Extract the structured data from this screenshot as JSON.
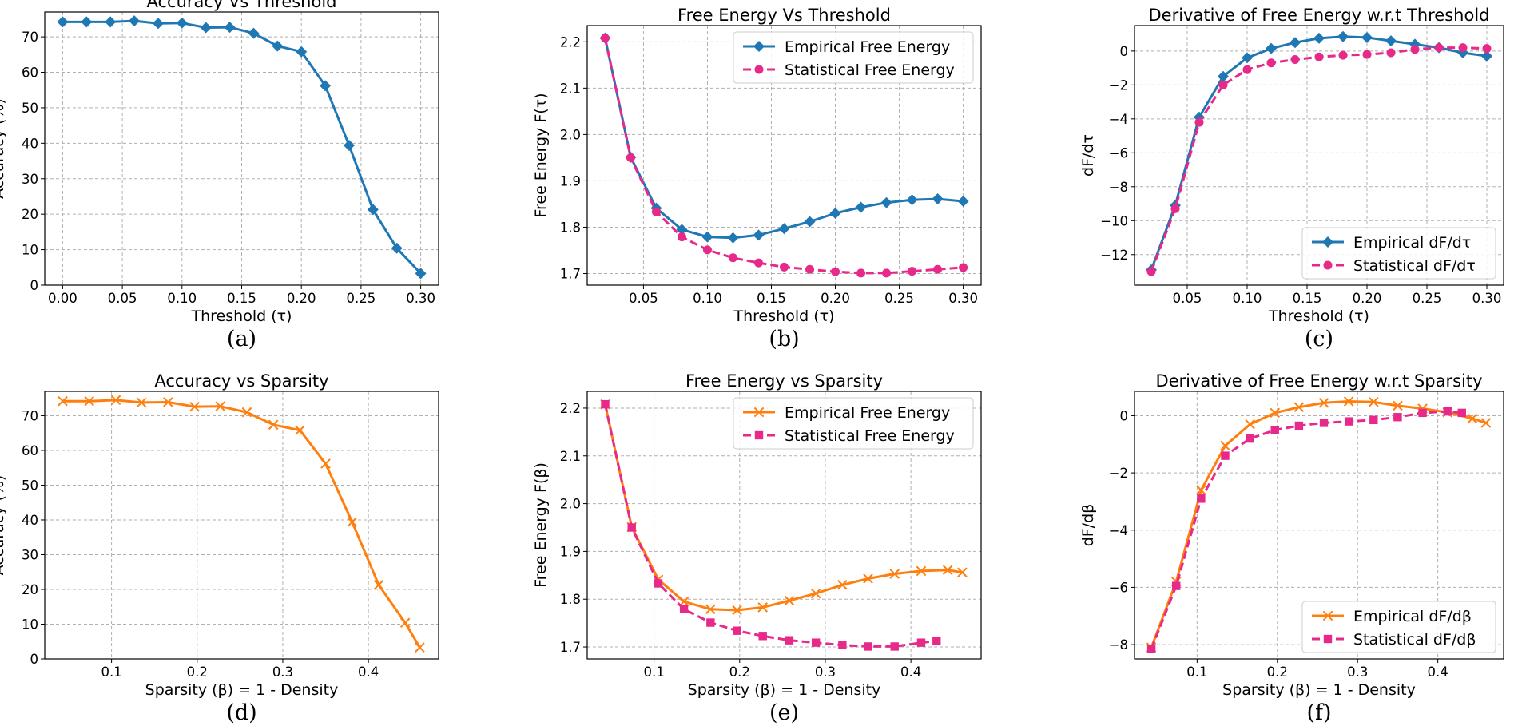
{
  "chart_data": [
    {
      "id": "a",
      "type": "line",
      "title": "Accuracy Vs Threshold",
      "xlabel": "Threshold (τ)",
      "ylabel": "Accuracy (%)",
      "caption": "(a)",
      "xlim": [
        -0.015,
        0.315
      ],
      "ylim": [
        0,
        77
      ],
      "xticks": [
        0.0,
        0.05,
        0.1,
        0.15,
        0.2,
        0.25,
        0.3
      ],
      "xtick_labels": [
        "0.00",
        "0.05",
        "0.10",
        "0.15",
        "0.20",
        "0.25",
        "0.30"
      ],
      "yticks": [
        0,
        10,
        20,
        30,
        40,
        50,
        60,
        70
      ],
      "ytick_labels": [
        "0",
        "10",
        "20",
        "30",
        "40",
        "50",
        "60",
        "70"
      ],
      "legend": null,
      "series": [
        {
          "name": "Accuracy",
          "color": "#1f77b4",
          "marker": "diamond",
          "dashed": false,
          "x": [
            0.0,
            0.02,
            0.04,
            0.06,
            0.08,
            0.1,
            0.12,
            0.14,
            0.16,
            0.18,
            0.2,
            0.22,
            0.24,
            0.26,
            0.28,
            0.3
          ],
          "y": [
            74.2,
            74.2,
            74.2,
            74.5,
            73.8,
            73.9,
            72.6,
            72.7,
            71.0,
            67.4,
            65.8,
            56.2,
            39.4,
            21.3,
            10.4,
            3.3
          ]
        }
      ]
    },
    {
      "id": "b",
      "type": "line",
      "title": "Free Energy Vs Threshold",
      "xlabel": "Threshold (τ)",
      "ylabel": "Free Energy F(τ)",
      "caption": "(b)",
      "xlim": [
        0.006,
        0.314
      ],
      "ylim": [
        1.675,
        2.235
      ],
      "xticks": [
        0.05,
        0.1,
        0.15,
        0.2,
        0.25,
        0.3
      ],
      "xtick_labels": [
        "0.05",
        "0.10",
        "0.15",
        "0.20",
        "0.25",
        "0.30"
      ],
      "yticks": [
        1.7,
        1.8,
        1.9,
        2.0,
        2.1,
        2.2
      ],
      "ytick_labels": [
        "1.7",
        "1.8",
        "1.9",
        "2.0",
        "2.1",
        "2.2"
      ],
      "legend": "top-right",
      "series": [
        {
          "name": "Empirical Free Energy",
          "color": "#1f77b4",
          "marker": "diamond",
          "dashed": false,
          "x": [
            0.02,
            0.04,
            0.06,
            0.08,
            0.1,
            0.12,
            0.14,
            0.16,
            0.18,
            0.2,
            0.22,
            0.24,
            0.26,
            0.28,
            0.3
          ],
          "y": [
            2.208,
            1.951,
            1.841,
            1.795,
            1.779,
            1.777,
            1.783,
            1.797,
            1.812,
            1.83,
            1.843,
            1.853,
            1.859,
            1.861,
            1.856
          ]
        },
        {
          "name": "Statistical Free Energy",
          "color": "#e7298a",
          "marker": "circle",
          "dashed": true,
          "x": [
            0.02,
            0.04,
            0.06,
            0.08,
            0.1,
            0.12,
            0.14,
            0.16,
            0.18,
            0.2,
            0.22,
            0.24,
            0.26,
            0.28,
            0.3
          ],
          "y": [
            2.208,
            1.95,
            1.833,
            1.779,
            1.751,
            1.734,
            1.723,
            1.714,
            1.709,
            1.704,
            1.701,
            1.701,
            1.705,
            1.709,
            1.713
          ]
        }
      ]
    },
    {
      "id": "c",
      "type": "line",
      "title": "Derivative of Free Energy w.r.t Threshold",
      "xlabel": "Threshold (τ)",
      "ylabel": "dF/dτ",
      "caption": "(c)",
      "xlim": [
        0.006,
        0.314
      ],
      "ylim": [
        -13.8,
        1.5
      ],
      "xticks": [
        0.05,
        0.1,
        0.15,
        0.2,
        0.25,
        0.3
      ],
      "xtick_labels": [
        "0.05",
        "0.10",
        "0.15",
        "0.20",
        "0.25",
        "0.30"
      ],
      "yticks": [
        -12,
        -10,
        -8,
        -6,
        -4,
        -2,
        0
      ],
      "ytick_labels": [
        "−12",
        "−10",
        "−8",
        "−6",
        "−4",
        "−2",
        "0"
      ],
      "legend": "bottom-right",
      "series": [
        {
          "name": "Empirical dF/dτ",
          "color": "#1f77b4",
          "marker": "diamond",
          "dashed": false,
          "x": [
            0.02,
            0.04,
            0.06,
            0.08,
            0.1,
            0.12,
            0.14,
            0.16,
            0.18,
            0.2,
            0.22,
            0.24,
            0.26,
            0.28,
            0.3
          ],
          "y": [
            -12.9,
            -9.1,
            -3.9,
            -1.5,
            -0.4,
            0.15,
            0.5,
            0.75,
            0.85,
            0.8,
            0.6,
            0.4,
            0.2,
            -0.1,
            -0.3
          ]
        },
        {
          "name": "Statistical dF/dτ",
          "color": "#e7298a",
          "marker": "circle",
          "dashed": true,
          "x": [
            0.02,
            0.04,
            0.06,
            0.08,
            0.1,
            0.12,
            0.14,
            0.16,
            0.18,
            0.2,
            0.22,
            0.24,
            0.26,
            0.28,
            0.3
          ],
          "y": [
            -13.0,
            -9.3,
            -4.2,
            -2.0,
            -1.1,
            -0.7,
            -0.5,
            -0.35,
            -0.25,
            -0.2,
            -0.1,
            0.1,
            0.2,
            0.2,
            0.15
          ]
        }
      ]
    },
    {
      "id": "d",
      "type": "line",
      "title": "Accuracy vs Sparsity",
      "xlabel": "Sparsity (β) = 1 - Density",
      "ylabel": "Accuracy (%)",
      "caption": "(d)",
      "xlim": [
        0.022,
        0.482
      ],
      "ylim": [
        0,
        77
      ],
      "xticks": [
        0.1,
        0.2,
        0.3,
        0.4
      ],
      "xtick_labels": [
        "0.1",
        "0.2",
        "0.3",
        "0.4"
      ],
      "yticks": [
        0,
        10,
        20,
        30,
        40,
        50,
        60,
        70
      ],
      "ytick_labels": [
        "0",
        "10",
        "20",
        "30",
        "40",
        "50",
        "60",
        "70"
      ],
      "legend": null,
      "series": [
        {
          "name": "Accuracy",
          "color": "#ff7f0e",
          "marker": "x",
          "dashed": false,
          "x": [
            0.043,
            0.074,
            0.105,
            0.135,
            0.166,
            0.197,
            0.227,
            0.258,
            0.289,
            0.32,
            0.35,
            0.381,
            0.412,
            0.443,
            0.46
          ],
          "y": [
            74.2,
            74.2,
            74.5,
            73.8,
            73.9,
            72.6,
            72.7,
            71.0,
            67.4,
            65.8,
            56.2,
            39.4,
            21.3,
            10.4,
            3.3
          ]
        }
      ]
    },
    {
      "id": "e",
      "type": "line",
      "title": "Free Energy vs Sparsity",
      "xlabel": "Sparsity (β) = 1 - Density",
      "ylabel": "Free Energy F(β)",
      "caption": "(e)",
      "xlim": [
        0.022,
        0.482
      ],
      "ylim": [
        1.675,
        2.235
      ],
      "xticks": [
        0.1,
        0.2,
        0.3,
        0.4
      ],
      "xtick_labels": [
        "0.1",
        "0.2",
        "0.3",
        "0.4"
      ],
      "yticks": [
        1.7,
        1.8,
        1.9,
        2.0,
        2.1,
        2.2
      ],
      "ytick_labels": [
        "1.7",
        "1.8",
        "1.9",
        "2.0",
        "2.1",
        "2.2"
      ],
      "legend": "top-right",
      "series": [
        {
          "name": "Empirical Free Energy",
          "color": "#ff7f0e",
          "marker": "x",
          "dashed": false,
          "x": [
            0.043,
            0.074,
            0.105,
            0.135,
            0.166,
            0.197,
            0.227,
            0.258,
            0.289,
            0.32,
            0.35,
            0.381,
            0.412,
            0.443,
            0.46
          ],
          "y": [
            2.208,
            1.951,
            1.841,
            1.795,
            1.779,
            1.777,
            1.783,
            1.797,
            1.812,
            1.83,
            1.843,
            1.853,
            1.859,
            1.861,
            1.856
          ]
        },
        {
          "name": "Statistical Free Energy",
          "color": "#e7298a",
          "marker": "square",
          "dashed": true,
          "x": [
            0.043,
            0.074,
            0.105,
            0.135,
            0.166,
            0.197,
            0.227,
            0.258,
            0.289,
            0.32,
            0.35,
            0.381,
            0.412,
            0.43
          ],
          "y": [
            2.208,
            1.95,
            1.833,
            1.779,
            1.751,
            1.734,
            1.723,
            1.714,
            1.709,
            1.704,
            1.701,
            1.701,
            1.709,
            1.713
          ]
        }
      ]
    },
    {
      "id": "f",
      "type": "line",
      "title": "Derivative of Free Energy w.r.t Sparsity",
      "xlabel": "Sparsity (β) = 1 - Density",
      "ylabel": "dF/dβ",
      "caption": "(f)",
      "xlim": [
        0.022,
        0.482
      ],
      "ylim": [
        -8.5,
        0.85
      ],
      "xticks": [
        0.1,
        0.2,
        0.3,
        0.4
      ],
      "xtick_labels": [
        "0.1",
        "0.2",
        "0.3",
        "0.4"
      ],
      "yticks": [
        -8,
        -6,
        -4,
        -2,
        0
      ],
      "ytick_labels": [
        "−8",
        "−6",
        "−4",
        "−2",
        "0"
      ],
      "legend": "bottom-right",
      "series": [
        {
          "name": "Empirical dF/dβ",
          "color": "#ff7f0e",
          "marker": "x",
          "dashed": false,
          "x": [
            0.043,
            0.074,
            0.105,
            0.135,
            0.166,
            0.197,
            0.227,
            0.258,
            0.289,
            0.32,
            0.35,
            0.381,
            0.412,
            0.443,
            0.46
          ],
          "y": [
            -8.1,
            -5.8,
            -2.6,
            -1.05,
            -0.3,
            0.1,
            0.3,
            0.45,
            0.5,
            0.48,
            0.35,
            0.25,
            0.12,
            -0.1,
            -0.25
          ]
        },
        {
          "name": "Statistical dF/dβ",
          "color": "#e7298a",
          "marker": "square",
          "dashed": true,
          "x": [
            0.043,
            0.074,
            0.105,
            0.135,
            0.166,
            0.197,
            0.227,
            0.258,
            0.289,
            0.32,
            0.35,
            0.381,
            0.412,
            0.43
          ],
          "y": [
            -8.15,
            -5.95,
            -2.9,
            -1.4,
            -0.8,
            -0.5,
            -0.35,
            -0.25,
            -0.2,
            -0.15,
            -0.05,
            0.1,
            0.15,
            0.1
          ]
        }
      ]
    }
  ]
}
